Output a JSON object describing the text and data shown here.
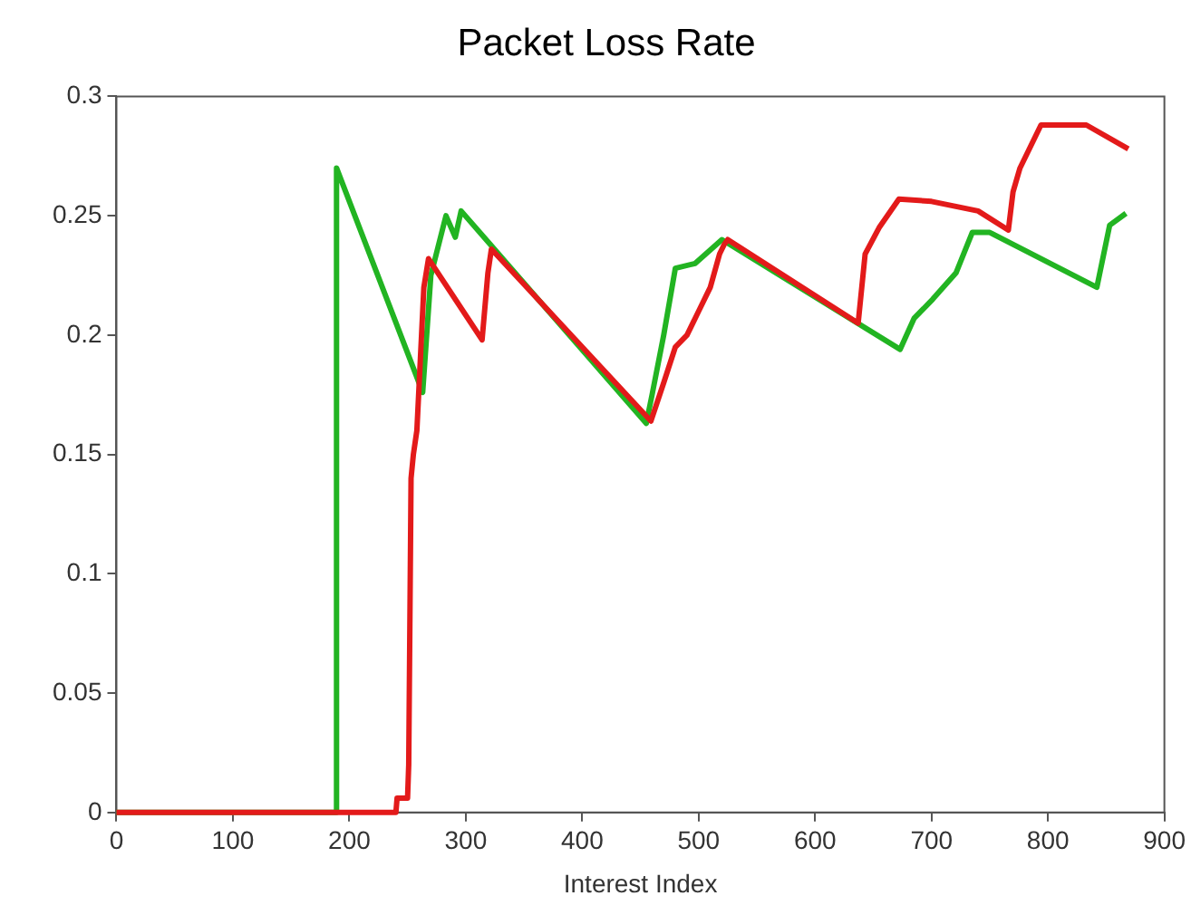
{
  "chart_data": {
    "type": "line",
    "title": "Packet Loss Rate",
    "xlabel": "Interest Index",
    "xlim": [
      0,
      900
    ],
    "xticks": [
      0,
      100,
      200,
      300,
      400,
      500,
      600,
      700,
      800,
      900
    ],
    "ylim": [
      0,
      0.3
    ],
    "yticks": [
      0,
      0.05,
      0.1,
      0.15,
      0.2,
      0.25,
      0.3
    ],
    "grid": false,
    "legend": false,
    "marker": "none",
    "line_style": "solid",
    "series": [
      {
        "color": "#e31a1a",
        "x": [
          0,
          240,
          241,
          250,
          251,
          253,
          255,
          258,
          262,
          264,
          268,
          314,
          319,
          322,
          459,
          470,
          480,
          490,
          500,
          510,
          518,
          522,
          525,
          637,
          643,
          655,
          672,
          700,
          740,
          766,
          770,
          776,
          794,
          833,
          869
        ],
        "values": [
          0,
          0,
          0.006,
          0.006,
          0.02,
          0.14,
          0.15,
          0.16,
          0.2,
          0.22,
          0.232,
          0.198,
          0.226,
          0.236,
          0.164,
          0.18,
          0.195,
          0.2,
          0.21,
          0.22,
          0.234,
          0.238,
          0.24,
          0.205,
          0.234,
          0.245,
          0.257,
          0.256,
          0.252,
          0.244,
          0.26,
          0.27,
          0.288,
          0.288,
          0.278
        ]
      },
      {
        "color": "#22b422",
        "x": [
          0,
          188,
          189,
          263,
          270,
          283,
          291,
          296,
          455,
          460,
          470,
          480,
          497,
          520,
          673,
          685,
          701,
          721,
          735,
          750,
          842,
          853,
          867
        ],
        "values": [
          0,
          0,
          0.27,
          0.176,
          0.225,
          0.25,
          0.241,
          0.252,
          0.163,
          0.175,
          0.2,
          0.228,
          0.23,
          0.24,
          0.194,
          0.207,
          0.215,
          0.226,
          0.243,
          0.243,
          0.22,
          0.246,
          0.251
        ]
      }
    ]
  }
}
